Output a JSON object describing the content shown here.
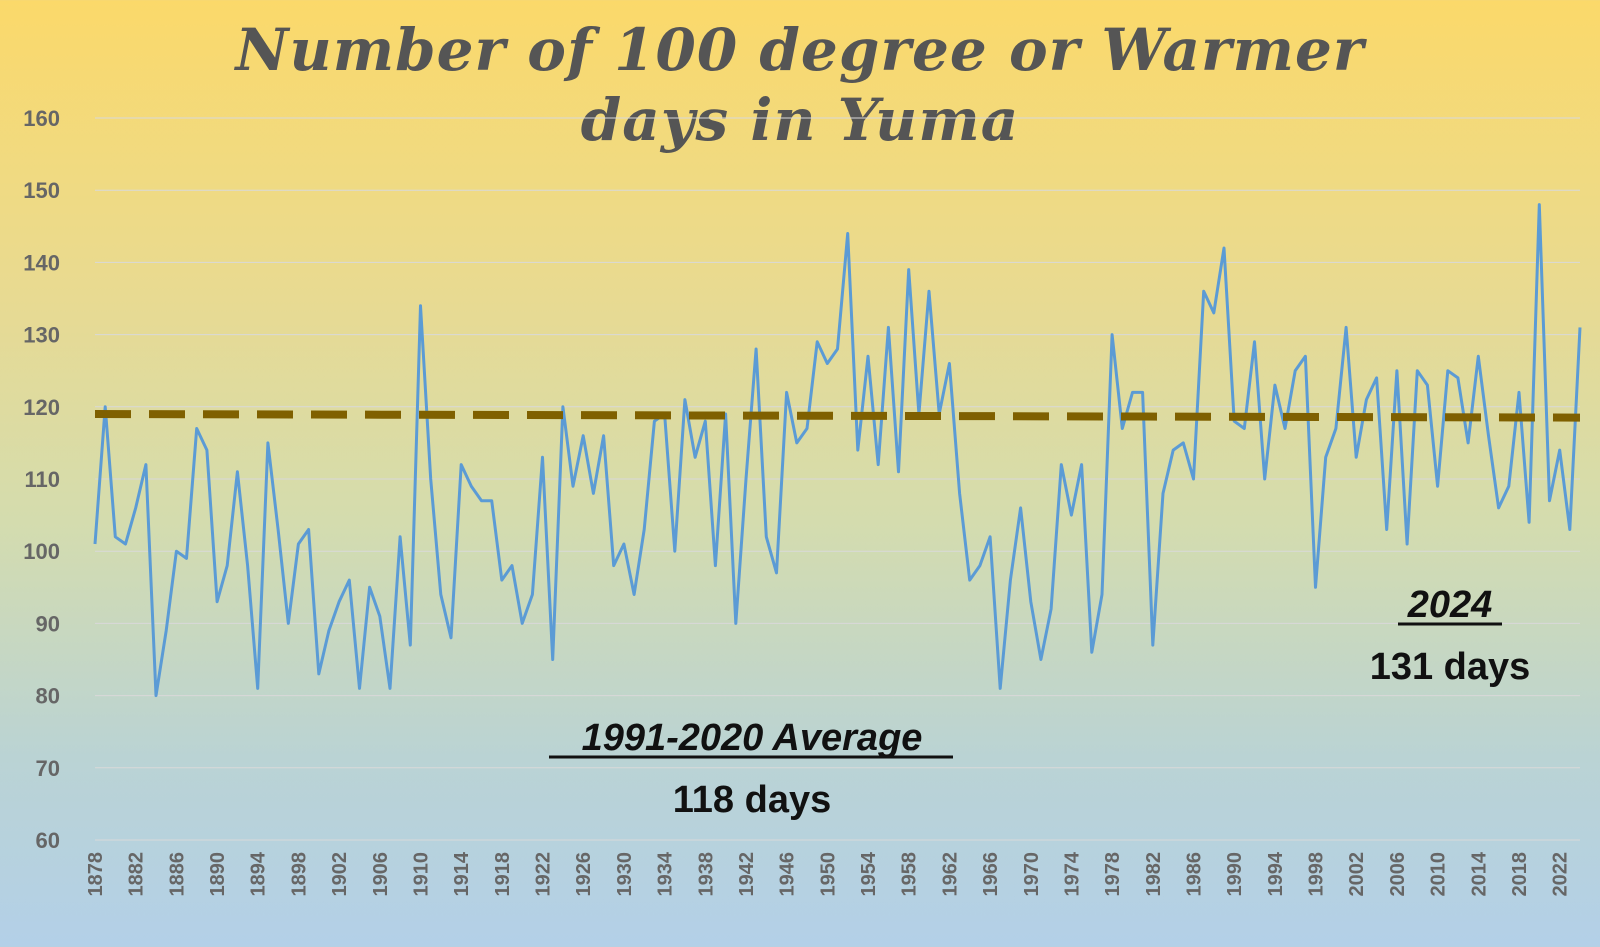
{
  "chart_data": {
    "type": "line",
    "title_line1": "Number of 100 degree or Warmer",
    "title_line2": "days in Yuma",
    "xlabel": "",
    "ylabel": "",
    "ylim": [
      60,
      160
    ],
    "yticks": [
      60,
      70,
      80,
      90,
      100,
      110,
      120,
      130,
      140,
      150,
      160
    ],
    "x_start": 1878,
    "x_end": 2024,
    "xtick_labels": [
      "1878",
      "1882",
      "1886",
      "1890",
      "1894",
      "1898",
      "1902",
      "1906",
      "1910",
      "1914",
      "1918",
      "1922",
      "1926",
      "1930",
      "1934",
      "1938",
      "1942",
      "1946",
      "1950",
      "1954",
      "1958",
      "1962",
      "1966",
      "1970",
      "1974",
      "1978",
      "1982",
      "1986",
      "1990",
      "1994",
      "1998",
      "2002",
      "2006",
      "2010",
      "2014",
      "2018",
      "2022"
    ],
    "grid": "horizontal",
    "legend": "none",
    "series": [
      {
        "color": "#5b9bd5",
        "x": [
          1878,
          1879,
          1880,
          1881,
          1882,
          1883,
          1884,
          1885,
          1886,
          1887,
          1888,
          1889,
          1890,
          1891,
          1892,
          1893,
          1894,
          1895,
          1896,
          1897,
          1898,
          1899,
          1900,
          1901,
          1902,
          1903,
          1904,
          1905,
          1906,
          1907,
          1908,
          1909,
          1910,
          1911,
          1912,
          1913,
          1914,
          1915,
          1916,
          1917,
          1918,
          1919,
          1920,
          1921,
          1922,
          1923,
          1924,
          1925,
          1926,
          1927,
          1928,
          1929,
          1930,
          1931,
          1932,
          1933,
          1934,
          1935,
          1936,
          1937,
          1938,
          1939,
          1940,
          1941,
          1942,
          1943,
          1944,
          1945,
          1946,
          1947,
          1948,
          1949,
          1950,
          1951,
          1952,
          1953,
          1954,
          1955,
          1956,
          1957,
          1958,
          1959,
          1960,
          1961,
          1962,
          1963,
          1964,
          1965,
          1966,
          1967,
          1968,
          1969,
          1970,
          1971,
          1972,
          1973,
          1974,
          1975,
          1976,
          1977,
          1978,
          1979,
          1980,
          1981,
          1982,
          1983,
          1984,
          1985,
          1986,
          1987,
          1988,
          1989,
          1990,
          1991,
          1992,
          1993,
          1994,
          1995,
          1996,
          1997,
          1998,
          1999,
          2000,
          2001,
          2002,
          2003,
          2004,
          2005,
          2006,
          2007,
          2008,
          2009,
          2010,
          2011,
          2012,
          2013,
          2014,
          2015,
          2016,
          2017,
          2018,
          2019,
          2020,
          2021,
          2022,
          2023,
          2024
        ],
        "values": [
          101,
          120,
          102,
          101,
          106,
          112,
          80,
          89,
          100,
          99,
          117,
          114,
          93,
          98,
          111,
          98,
          81,
          115,
          103,
          90,
          101,
          103,
          83,
          89,
          93,
          96,
          81,
          95,
          91,
          81,
          102,
          87,
          134,
          110,
          94,
          88,
          112,
          109,
          107,
          107,
          96,
          98,
          90,
          94,
          113,
          85,
          120,
          109,
          116,
          108,
          116,
          98,
          101,
          94,
          103,
          118,
          119,
          100,
          121,
          113,
          118,
          98,
          119,
          90,
          110,
          128,
          102,
          97,
          122,
          115,
          117,
          129,
          126,
          128,
          144,
          114,
          127,
          112,
          131,
          111,
          139,
          119,
          136,
          119,
          126,
          108,
          96,
          98,
          102,
          81,
          96,
          106,
          93,
          85,
          92,
          112,
          105,
          112,
          86,
          94,
          130,
          117,
          122,
          122,
          87,
          108,
          114,
          115,
          110,
          136,
          133,
          142,
          118,
          117,
          129,
          110,
          123,
          117,
          125,
          127,
          95,
          113,
          117,
          131,
          113,
          121,
          124,
          103,
          125,
          101,
          125,
          123,
          109,
          125,
          124,
          115,
          127,
          116,
          106,
          109,
          122,
          104,
          148,
          107,
          114,
          103,
          131
        ]
      },
      {
        "color": "#7f6000",
        "dashed": true,
        "x": [
          1878,
          2024
        ],
        "values": [
          119,
          118.5
        ]
      }
    ],
    "annotations": [
      {
        "heading": "1991-2020 Average",
        "value": "118 days"
      },
      {
        "heading": "2024",
        "value": "131 days"
      }
    ]
  }
}
